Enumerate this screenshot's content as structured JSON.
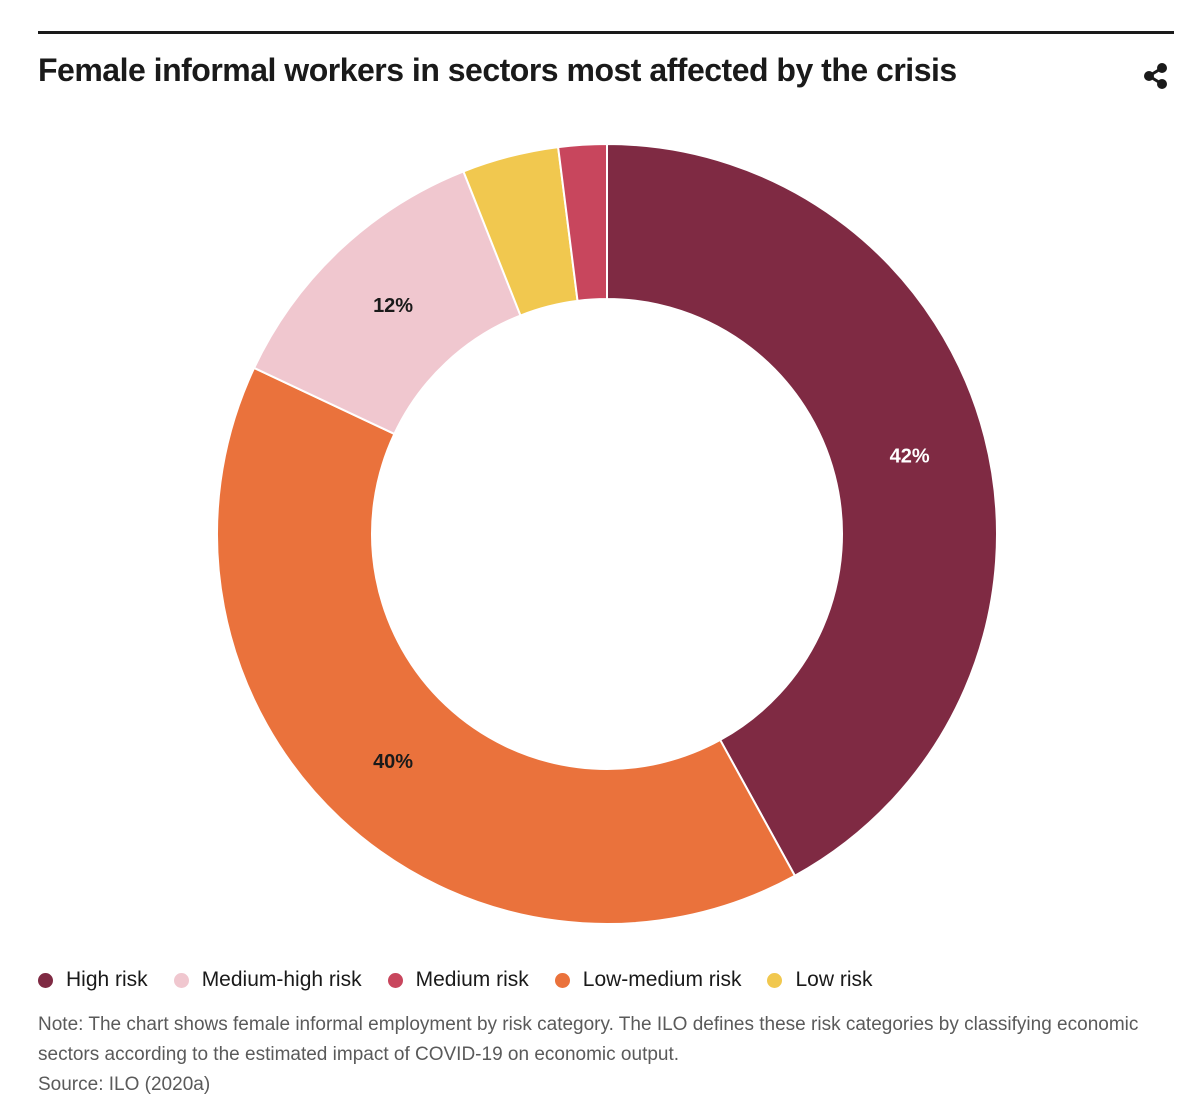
{
  "title": "Female informal workers in sectors most affected by the crisis",
  "share_icon": "share-icon",
  "note": "Note: The chart shows female informal employment by risk category. The ILO defines these risk categories by classifying economic sectors according to the estimated impact of COVID-19 on economic output.",
  "source": "Source: ILO (2020a)",
  "colors": {
    "high": "#7f2a43",
    "medium_high": "#f0c7cf",
    "medium": "#c8465d",
    "low_medium": "#ea723c",
    "low": "#f1c84f"
  },
  "chart_data": {
    "type": "pie",
    "variant": "donut",
    "title": "Female informal workers in sectors most affected by the crisis",
    "start": "top",
    "direction": "clockwise",
    "series": [
      {
        "name": "High risk",
        "value": 42,
        "label": "42%",
        "color": "#7f2a43",
        "label_color": "#ffffff"
      },
      {
        "name": "Low-medium risk",
        "value": 40,
        "label": "40%",
        "color": "#ea723c",
        "label_color": "#1a1a1a"
      },
      {
        "name": "Medium-high risk",
        "value": 12,
        "label": "12%",
        "color": "#f0c7cf",
        "label_color": "#1a1a1a"
      },
      {
        "name": "Low risk",
        "value": 4,
        "label": "",
        "color": "#f1c84f",
        "label_color": "#1a1a1a"
      },
      {
        "name": "Medium risk",
        "value": 2,
        "label": "",
        "color": "#c8465d",
        "label_color": "#1a1a1a"
      }
    ],
    "legend": [
      {
        "name": "High risk",
        "color": "#7f2a43"
      },
      {
        "name": "Medium-high risk",
        "color": "#f0c7cf"
      },
      {
        "name": "Medium risk",
        "color": "#c8465d"
      },
      {
        "name": "Low-medium risk",
        "color": "#ea723c"
      },
      {
        "name": "Low risk",
        "color": "#f1c84f"
      }
    ],
    "legend_position": "bottom-left"
  }
}
